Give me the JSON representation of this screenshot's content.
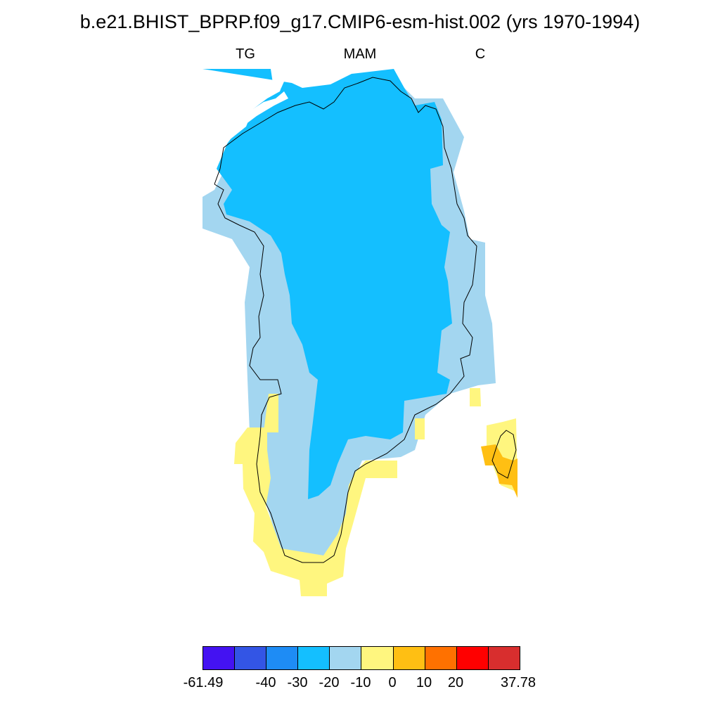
{
  "title": "b.e21.BHIST_BPRP.f09_g17.CMIP6-esm-hist.002 (yrs 1970-1994)",
  "subtitle": {
    "left": "TG",
    "center": "MAM",
    "right": "C"
  },
  "colorbar": {
    "colors": [
      "#4412f2",
      "#3355e5",
      "#1e8cf5",
      "#14bfff",
      "#a3d6f0",
      "#fff67f",
      "#ffbf13",
      "#ff7100",
      "#ff0000",
      "#d82e2e"
    ],
    "labels": [
      "-61.49",
      "-40",
      "-30",
      "-20",
      "-10",
      "0",
      "10",
      "20",
      "37.78"
    ]
  }
}
